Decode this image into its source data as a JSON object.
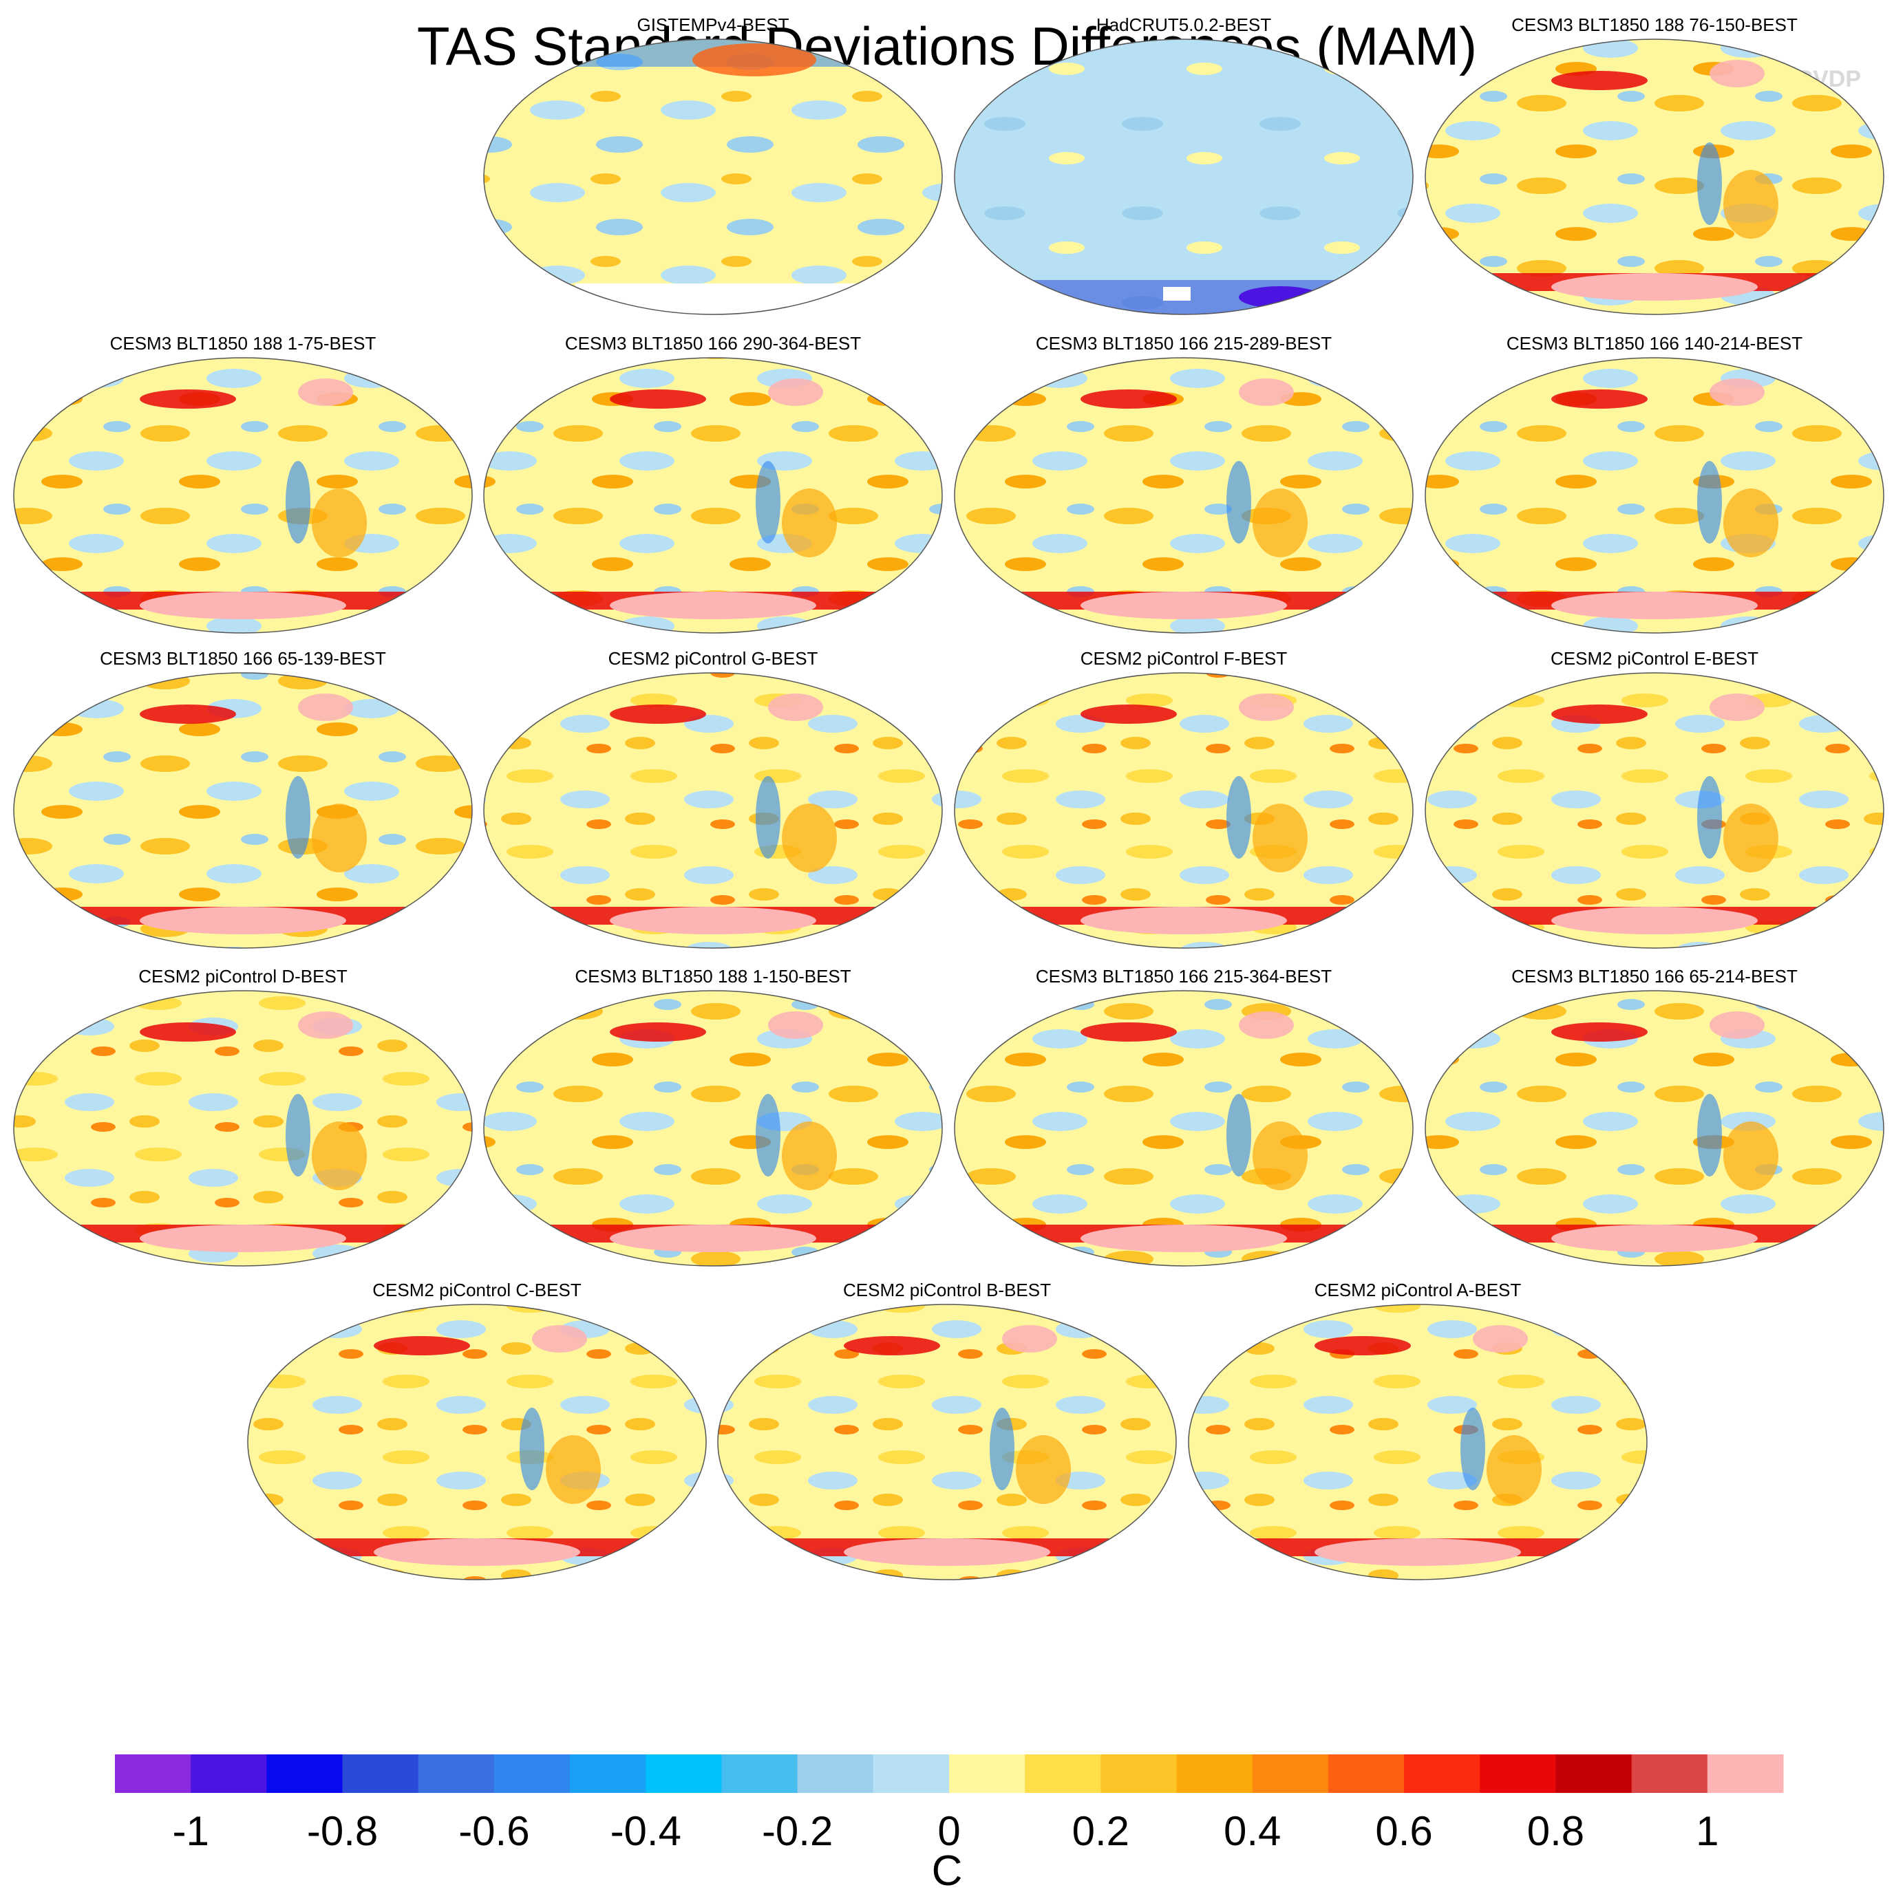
{
  "title": "TAS Standard Deviations Differences (MAM)",
  "watermark": "© CVDP",
  "chart_data": {
    "type": "heatmap",
    "description_kind": "global map panels, Robinson-like projection",
    "units": "C",
    "colorbar": {
      "levels": [
        -1.1,
        -1.0,
        -0.9,
        -0.8,
        -0.7,
        -0.6,
        -0.5,
        -0.4,
        -0.3,
        -0.2,
        -0.1,
        0.0,
        0.1,
        0.2,
        0.3,
        0.4,
        0.5,
        0.6,
        0.7,
        0.8,
        0.9,
        1.0,
        1.1
      ],
      "tick_labels": [
        "-1",
        "-0.8",
        "-0.6",
        "-0.4",
        "-0.2",
        "0",
        "0.2",
        "0.4",
        "0.6",
        "0.8",
        "1"
      ],
      "tick_values": [
        -1.0,
        -0.8,
        -0.6,
        -0.4,
        -0.2,
        0.0,
        0.2,
        0.4,
        0.6,
        0.8,
        1.0
      ],
      "colors": [
        "#8a2be2",
        "#4b14e0",
        "#0a0af0",
        "#2c4ad8",
        "#3a6fe0",
        "#2f86ee",
        "#1aa0f5",
        "#00c0fb",
        "#46bff0",
        "#9cd0ec",
        "#b8e0f4",
        "#fef79e",
        "#fedf4a",
        "#fdc428",
        "#fca90c",
        "#fc8a10",
        "#fc6010",
        "#fc2a10",
        "#e80808",
        "#c40006",
        "#dc4646",
        "#fcb4b4"
      ]
    },
    "panels": [
      {
        "title": "GISTEMPv4-BEST",
        "style": "obs1"
      },
      {
        "title": "HadCRUT5.0.2-BEST",
        "style": "obs2"
      },
      {
        "title": "CESM3 BLT1850 188 76-150-BEST",
        "style": "model"
      },
      {
        "title": "CESM3 BLT1850 188 1-75-BEST",
        "style": "model"
      },
      {
        "title": "CESM3 BLT1850 166 290-364-BEST",
        "style": "model"
      },
      {
        "title": "CESM3 BLT1850 166 215-289-BEST",
        "style": "model"
      },
      {
        "title": "CESM3 BLT1850 166 140-214-BEST",
        "style": "model"
      },
      {
        "title": "CESM3 BLT1850 166 65-139-BEST",
        "style": "model"
      },
      {
        "title": "CESM2 piControl G-BEST",
        "style": "model2"
      },
      {
        "title": "CESM2 piControl F-BEST",
        "style": "model2"
      },
      {
        "title": "CESM2 piControl E-BEST",
        "style": "model2"
      },
      {
        "title": "CESM2 piControl D-BEST",
        "style": "model2"
      },
      {
        "title": "CESM3 BLT1850 188 1-150-BEST",
        "style": "model"
      },
      {
        "title": "CESM3 BLT1850 166 215-364-BEST",
        "style": "model"
      },
      {
        "title": "CESM3 BLT1850 166 65-214-BEST",
        "style": "model"
      },
      {
        "title": "CESM2 piControl C-BEST",
        "style": "model2"
      },
      {
        "title": "CESM2 piControl B-BEST",
        "style": "model2"
      },
      {
        "title": "CESM2 piControl A-BEST",
        "style": "model2"
      }
    ]
  }
}
